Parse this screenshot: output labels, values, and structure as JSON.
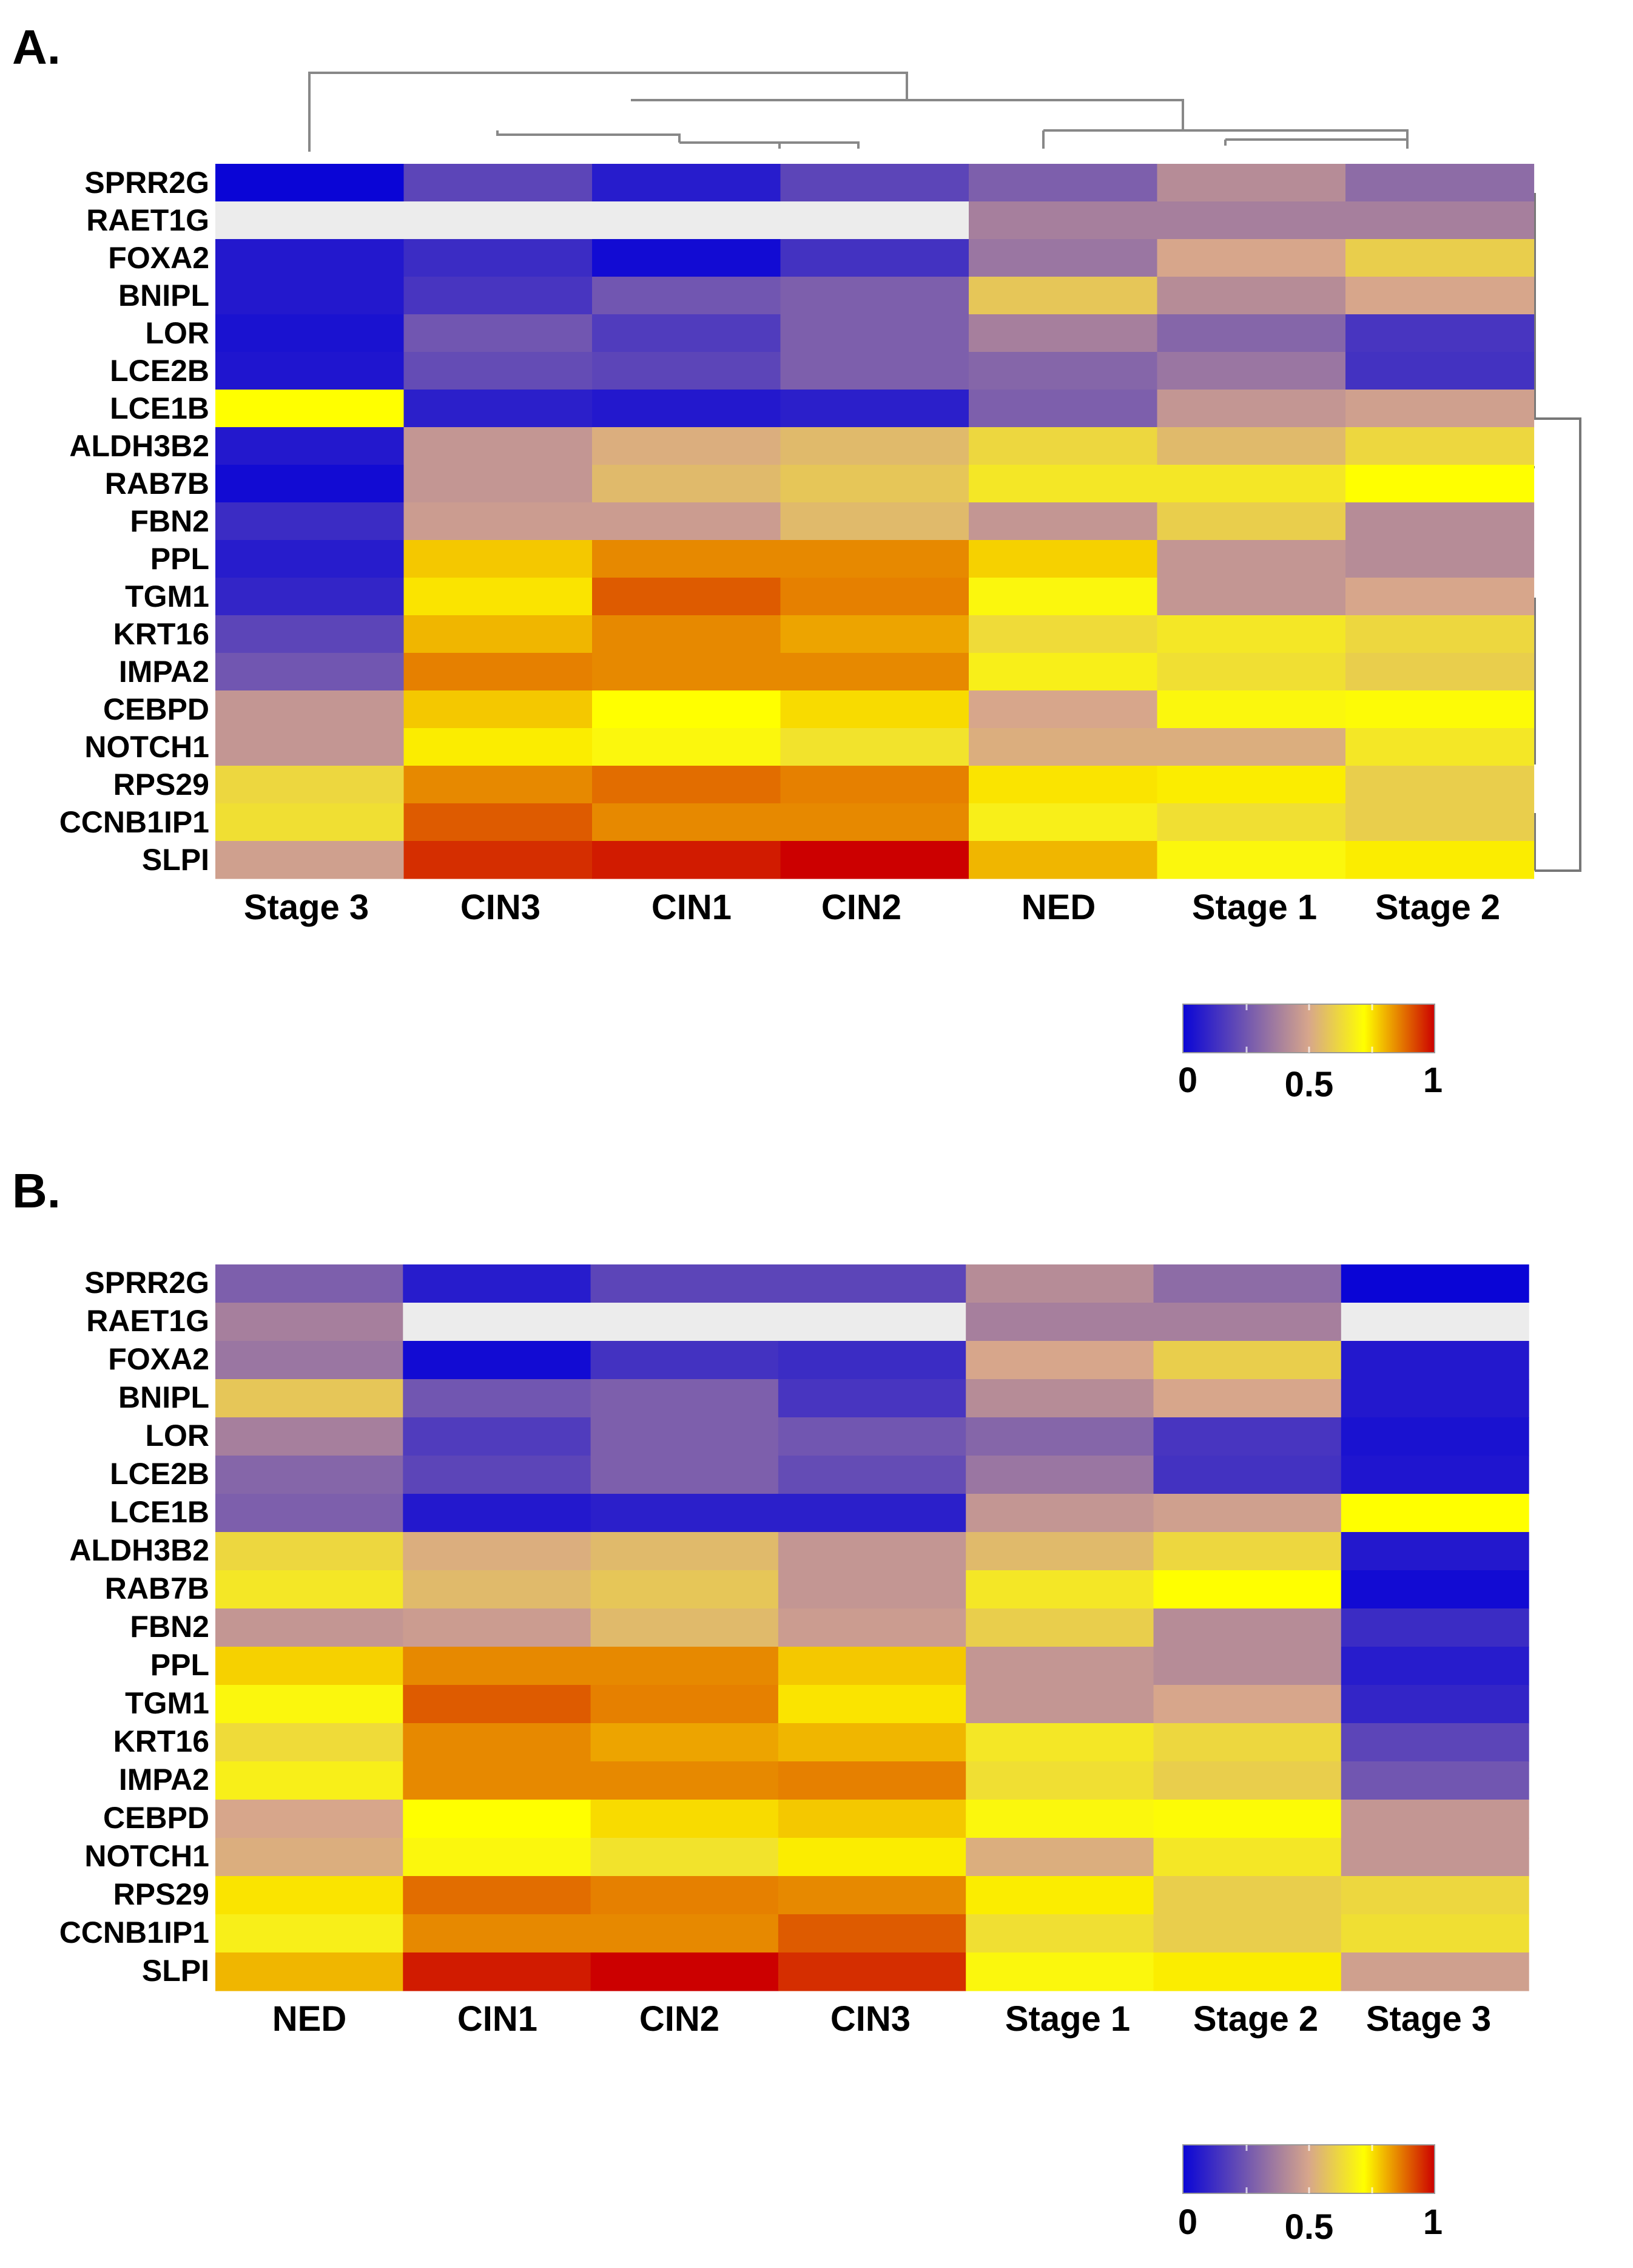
{
  "chart_data": [
    {
      "type": "heatmap",
      "panel_label": "A.",
      "rows": [
        "SPRR2G",
        "RAET1G",
        "FOXA2",
        "BNIPL",
        "LOR",
        "LCE2B",
        "LCE1B",
        "ALDH3B2",
        "RAB7B",
        "FBN2",
        "PPL",
        "TGM1",
        "KRT16",
        "IMPA2",
        "CEBPD",
        "NOTCH1",
        "RPS29",
        "CCNB1IP1",
        "SLPI"
      ],
      "columns": [
        "Stage 3",
        "CIN3",
        "CIN1",
        "CIN2",
        "NED",
        "Stage 1",
        "Stage 2"
      ],
      "values": [
        [
          0.0,
          0.2,
          0.07,
          0.2,
          0.28,
          0.42,
          0.32
        ],
        [
          null,
          null,
          null,
          null,
          0.38,
          0.38,
          0.38
        ],
        [
          0.06,
          0.12,
          0.02,
          0.14,
          0.35,
          0.5,
          0.6
        ],
        [
          0.06,
          0.15,
          0.25,
          0.28,
          0.58,
          0.42,
          0.5
        ],
        [
          0.04,
          0.25,
          0.17,
          0.28,
          0.38,
          0.3,
          0.15
        ],
        [
          0.05,
          0.22,
          0.2,
          0.28,
          0.3,
          0.35,
          0.14
        ],
        [
          0.72,
          0.08,
          0.06,
          0.08,
          0.28,
          0.45,
          0.48
        ],
        [
          0.06,
          0.45,
          0.52,
          0.55,
          0.62,
          0.55,
          0.62
        ],
        [
          0.02,
          0.45,
          0.55,
          0.58,
          0.66,
          0.66,
          0.72
        ],
        [
          0.12,
          0.47,
          0.47,
          0.55,
          0.45,
          0.6,
          0.42
        ],
        [
          0.07,
          0.78,
          0.85,
          0.85,
          0.77,
          0.45,
          0.42
        ],
        [
          0.1,
          0.75,
          0.9,
          0.86,
          0.7,
          0.45,
          0.5
        ],
        [
          0.2,
          0.8,
          0.85,
          0.82,
          0.63,
          0.66,
          0.62
        ],
        [
          0.25,
          0.86,
          0.85,
          0.85,
          0.68,
          0.64,
          0.6
        ],
        [
          0.45,
          0.78,
          0.72,
          0.76,
          0.5,
          0.7,
          0.71
        ],
        [
          0.45,
          0.74,
          0.7,
          0.65,
          0.52,
          0.52,
          0.66
        ],
        [
          0.62,
          0.85,
          0.88,
          0.86,
          0.75,
          0.74,
          0.6
        ],
        [
          0.64,
          0.9,
          0.85,
          0.85,
          0.68,
          0.64,
          0.6
        ],
        [
          0.48,
          0.95,
          0.97,
          1.0,
          0.8,
          0.7,
          0.74
        ]
      ],
      "dendrogram": "present",
      "colorbar": {
        "ticks": [
          "0",
          "0.5",
          "1"
        ],
        "range": [
          0,
          1
        ],
        "colors": [
          "#0a05d6",
          "#d7a68b",
          "#ffff00",
          "#cc0000"
        ]
      }
    },
    {
      "type": "heatmap",
      "panel_label": "B.",
      "rows": [
        "SPRR2G",
        "RAET1G",
        "FOXA2",
        "BNIPL",
        "LOR",
        "LCE2B",
        "LCE1B",
        "ALDH3B2",
        "RAB7B",
        "FBN2",
        "PPL",
        "TGM1",
        "KRT16",
        "IMPA2",
        "CEBPD",
        "NOTCH1",
        "RPS29",
        "CCNB1IP1",
        "SLPI"
      ],
      "columns": [
        "NED",
        "CIN1",
        "CIN2",
        "CIN3",
        "Stage 1",
        "Stage 2",
        "Stage 3"
      ],
      "values": [
        [
          0.28,
          0.07,
          0.2,
          0.2,
          0.42,
          0.32,
          0.0
        ],
        [
          0.38,
          null,
          null,
          null,
          0.38,
          0.38,
          null
        ],
        [
          0.35,
          0.02,
          0.14,
          0.12,
          0.5,
          0.6,
          0.06
        ],
        [
          0.58,
          0.25,
          0.28,
          0.15,
          0.42,
          0.5,
          0.06
        ],
        [
          0.38,
          0.17,
          0.28,
          0.25,
          0.3,
          0.15,
          0.04
        ],
        [
          0.3,
          0.2,
          0.28,
          0.22,
          0.35,
          0.14,
          0.05
        ],
        [
          0.28,
          0.06,
          0.08,
          0.08,
          0.45,
          0.48,
          0.72
        ],
        [
          0.62,
          0.52,
          0.55,
          0.45,
          0.55,
          0.62,
          0.06
        ],
        [
          0.66,
          0.55,
          0.58,
          0.45,
          0.66,
          0.72,
          0.02
        ],
        [
          0.45,
          0.47,
          0.55,
          0.47,
          0.6,
          0.42,
          0.12
        ],
        [
          0.77,
          0.85,
          0.85,
          0.78,
          0.45,
          0.42,
          0.07
        ],
        [
          0.7,
          0.9,
          0.86,
          0.75,
          0.45,
          0.5,
          0.1
        ],
        [
          0.63,
          0.85,
          0.82,
          0.8,
          0.66,
          0.62,
          0.2
        ],
        [
          0.68,
          0.85,
          0.85,
          0.86,
          0.64,
          0.6,
          0.25
        ],
        [
          0.5,
          0.72,
          0.76,
          0.78,
          0.7,
          0.71,
          0.45
        ],
        [
          0.52,
          0.7,
          0.65,
          0.74,
          0.52,
          0.66,
          0.45
        ],
        [
          0.75,
          0.88,
          0.86,
          0.85,
          0.74,
          0.6,
          0.62
        ],
        [
          0.68,
          0.85,
          0.85,
          0.9,
          0.64,
          0.6,
          0.64
        ],
        [
          0.8,
          0.97,
          1.0,
          0.95,
          0.7,
          0.74,
          0.48
        ]
      ],
      "dendrogram": "none",
      "colorbar": {
        "ticks": [
          "0",
          "0.5",
          "1"
        ],
        "range": [
          0,
          1
        ],
        "colors": [
          "#0a05d6",
          "#d7a68b",
          "#ffff00",
          "#cc0000"
        ]
      }
    }
  ]
}
